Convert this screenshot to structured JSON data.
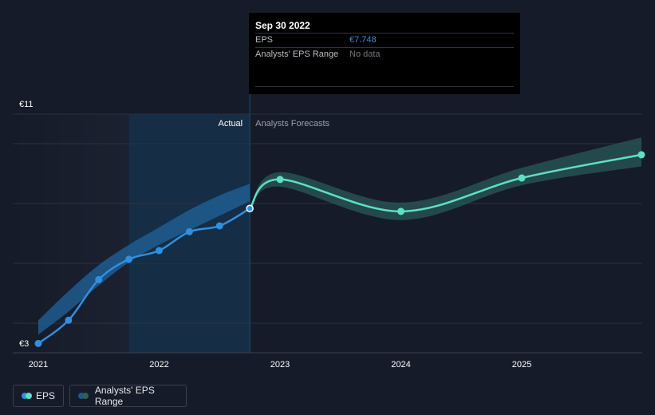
{
  "tooltip": {
    "date": "Sep 30 2022",
    "rows": [
      {
        "label": "EPS",
        "value": "€7.748"
      },
      {
        "label": "Analysts' EPS Range",
        "value": "No data"
      }
    ]
  },
  "legend": {
    "eps_label": "EPS",
    "range_label": "Analysts' EPS Range"
  },
  "colors": {
    "actual": "#2f8fe0",
    "forecast": "#5de0c5",
    "actual_band": "#1f5f95",
    "forecast_band": "#2a5a58",
    "background": "#151b28"
  },
  "chart_data": {
    "type": "line",
    "xlabel": "",
    "ylabel": "",
    "xlim": [
      2021.0,
      2025.99
    ],
    "ylim": [
      3,
      11
    ],
    "y_tick_labels": [
      {
        "value": 11,
        "label": "€11"
      },
      {
        "value": 3,
        "label": "€3"
      }
    ],
    "x_tick_labels": [
      {
        "value": 2021,
        "label": "2021"
      },
      {
        "value": 2022,
        "label": "2022"
      },
      {
        "value": 2023,
        "label": "2023"
      },
      {
        "value": 2024,
        "label": "2024"
      },
      {
        "value": 2025,
        "label": "2025"
      }
    ],
    "section_labels": {
      "actual": "Actual",
      "forecast": "Analysts Forecasts"
    },
    "divider_x": 2022.75,
    "highlight_start_x": 2021.75,
    "series": [
      {
        "name": "EPS",
        "kind": "actual",
        "points": [
          [
            2021.0,
            3.1
          ],
          [
            2021.25,
            3.9
          ],
          [
            2021.5,
            5.3
          ],
          [
            2021.75,
            6.0
          ],
          [
            2022.0,
            6.3
          ],
          [
            2022.25,
            6.95
          ],
          [
            2022.5,
            7.15
          ],
          [
            2022.75,
            7.748
          ]
        ]
      },
      {
        "name": "EPS",
        "kind": "forecast",
        "points": [
          [
            2022.75,
            7.748
          ],
          [
            2023.0,
            8.75
          ],
          [
            2024.0,
            7.65
          ],
          [
            2025.0,
            8.8
          ],
          [
            2025.99,
            9.6
          ]
        ]
      }
    ],
    "bands": [
      {
        "name": "Analysts' EPS Range",
        "kind": "actual",
        "x": [
          2021.0,
          2021.25,
          2021.5,
          2021.75,
          2022.0,
          2022.25,
          2022.5,
          2022.75
        ],
        "low": [
          3.4,
          4.2,
          5.1,
          5.9,
          6.5,
          7.0,
          7.5,
          8.0
        ],
        "high": [
          3.9,
          4.9,
          5.8,
          6.5,
          7.1,
          7.7,
          8.2,
          8.6
        ]
      },
      {
        "name": "Analysts' EPS Range",
        "kind": "forecast",
        "x": [
          2022.75,
          2023.0,
          2024.0,
          2025.0,
          2025.99
        ],
        "low": [
          7.748,
          8.5,
          7.35,
          8.55,
          9.2
        ],
        "high": [
          7.748,
          9.0,
          7.95,
          9.15,
          10.2
        ]
      }
    ],
    "gridlines": true,
    "legend_position": "bottom-left"
  }
}
